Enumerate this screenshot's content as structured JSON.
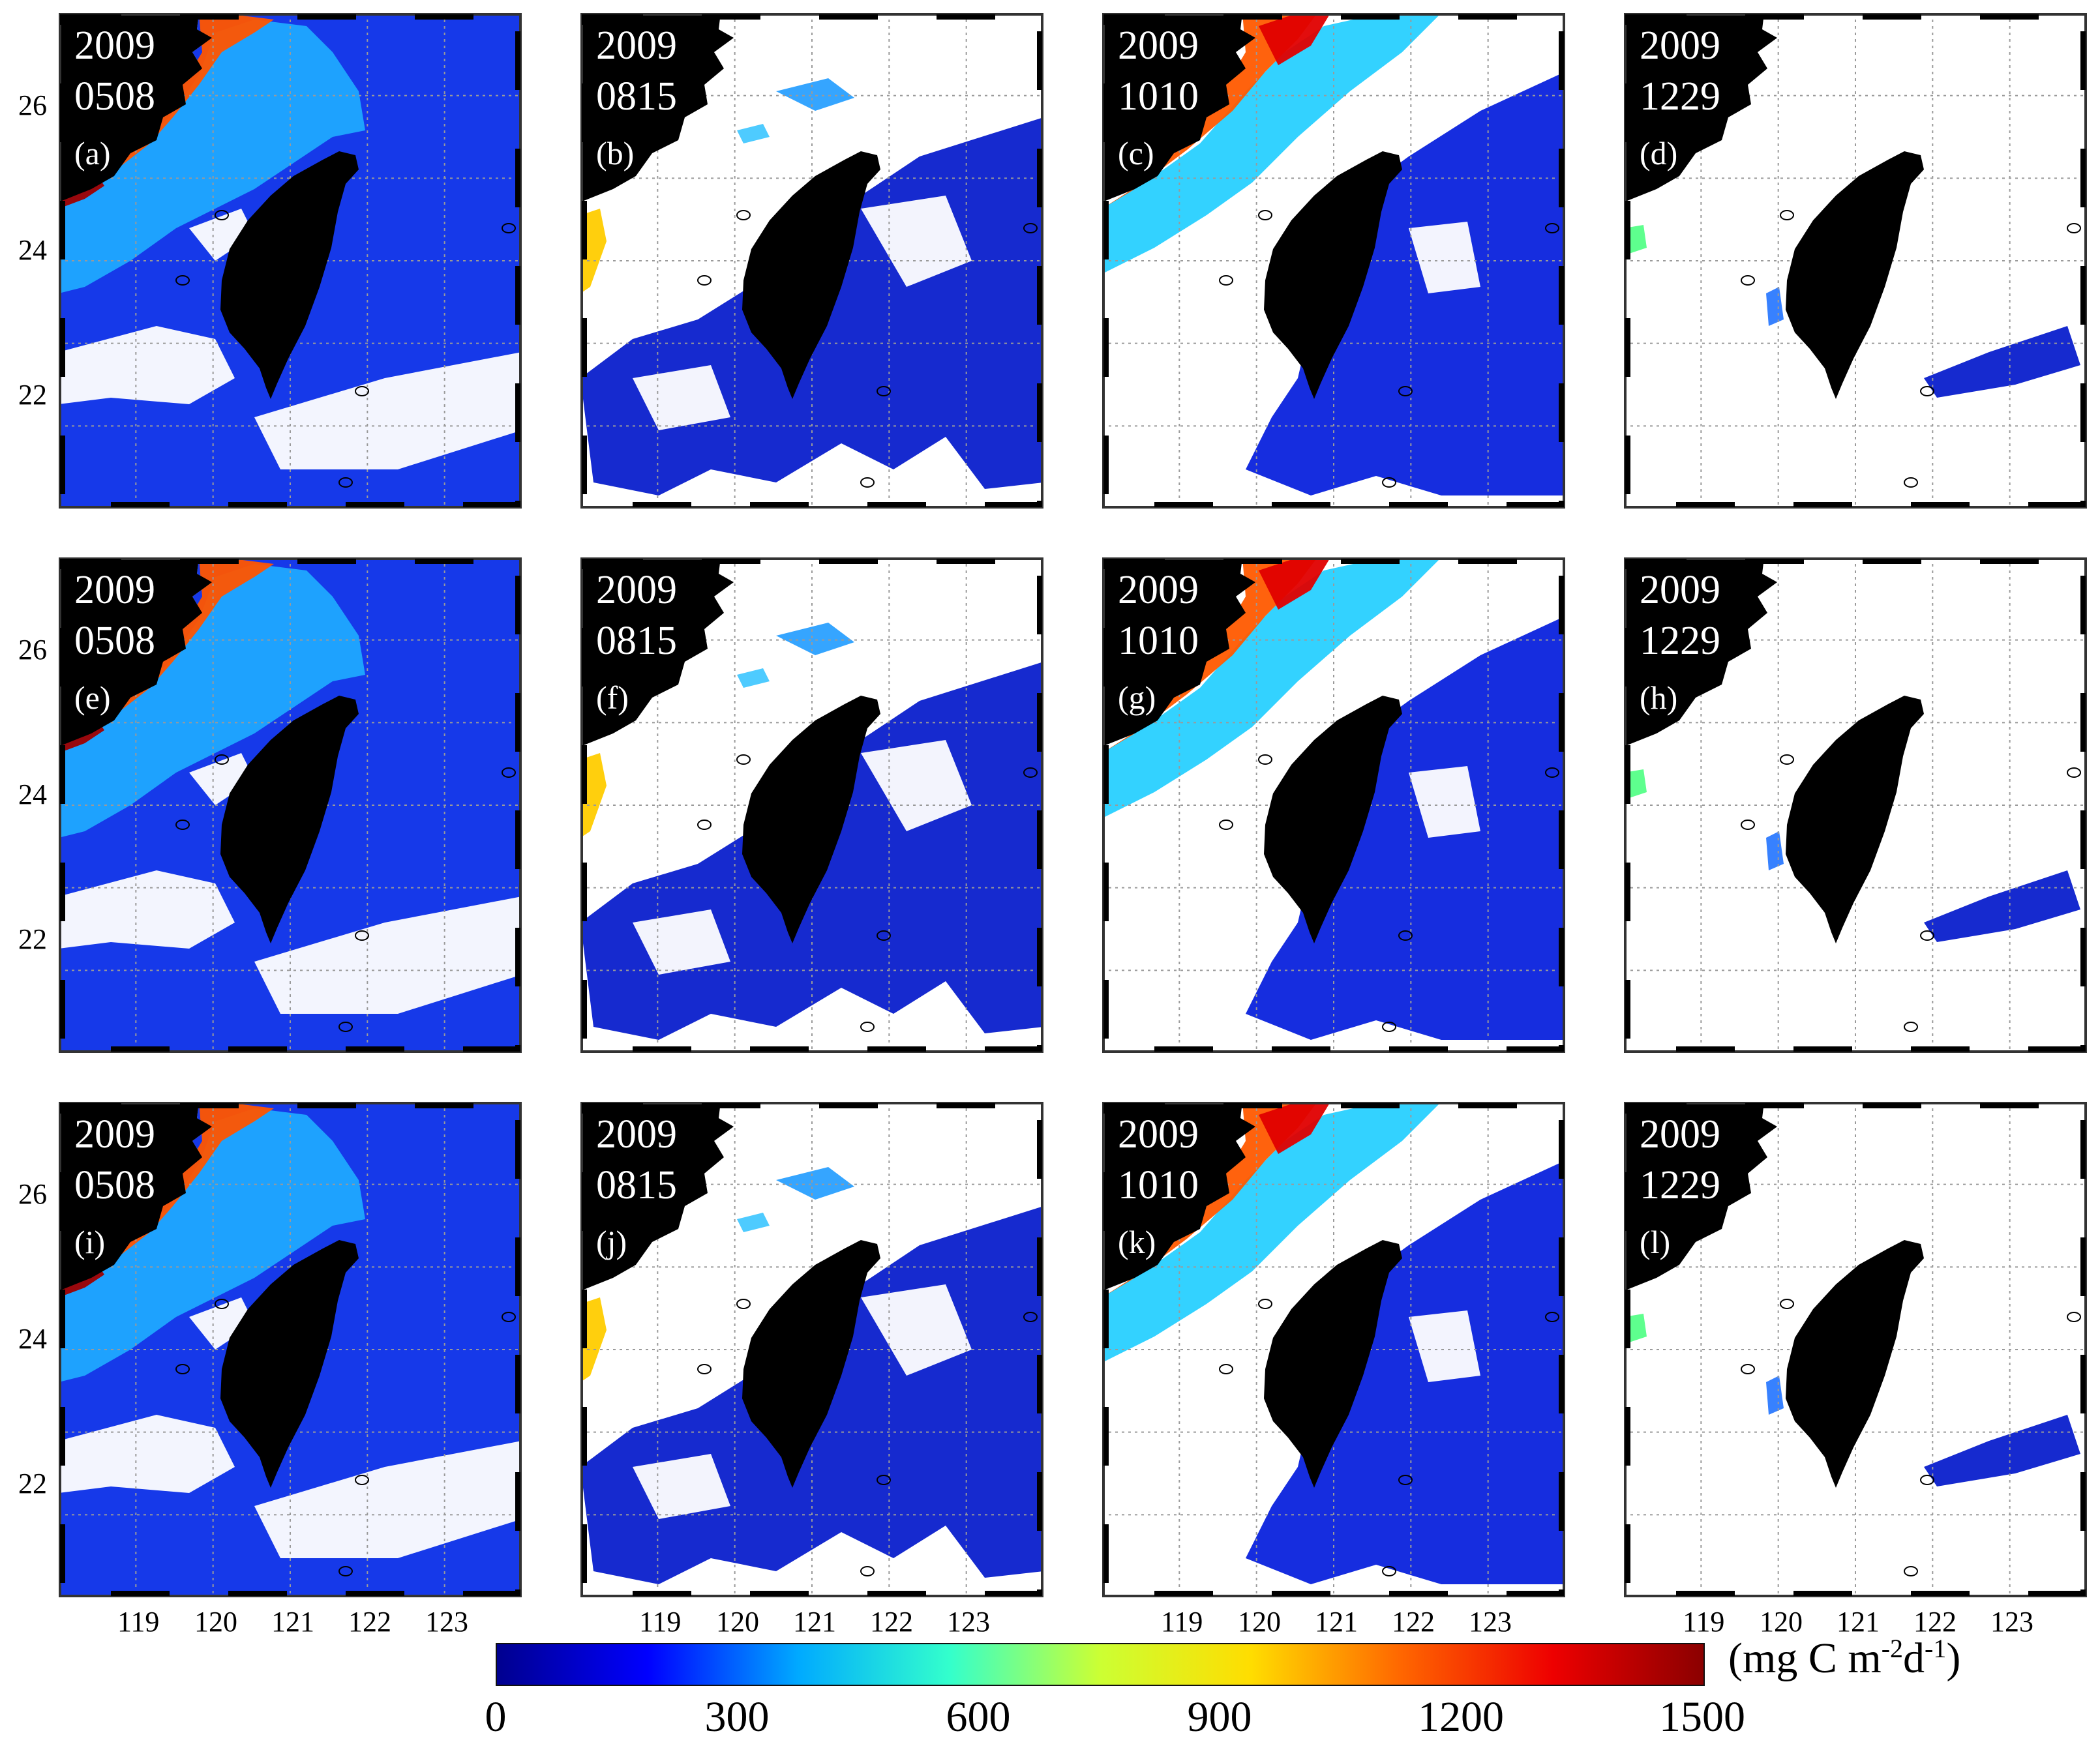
{
  "panels": [
    {
      "id": "a",
      "year": "2009",
      "date": "0508",
      "label": "(a)",
      "row": 0,
      "col": 0
    },
    {
      "id": "b",
      "year": "2009",
      "date": "0815",
      "label": "(b)",
      "row": 0,
      "col": 1
    },
    {
      "id": "c",
      "year": "2009",
      "date": "1010",
      "label": "(c)",
      "row": 0,
      "col": 2
    },
    {
      "id": "d",
      "year": "2009",
      "date": "1229",
      "label": "(d)",
      "row": 0,
      "col": 3
    },
    {
      "id": "e",
      "year": "2009",
      "date": "0508",
      "label": "(e)",
      "row": 1,
      "col": 0
    },
    {
      "id": "f",
      "year": "2009",
      "date": "0815",
      "label": "(f)",
      "row": 1,
      "col": 1
    },
    {
      "id": "g",
      "year": "2009",
      "date": "1010",
      "label": "(g)",
      "row": 1,
      "col": 2
    },
    {
      "id": "h",
      "year": "2009",
      "date": "1229",
      "label": "(h)",
      "row": 1,
      "col": 3
    },
    {
      "id": "i",
      "year": "2009",
      "date": "0508",
      "label": "(i)",
      "row": 2,
      "col": 0
    },
    {
      "id": "j",
      "year": "2009",
      "date": "0815",
      "label": "(j)",
      "row": 2,
      "col": 1
    },
    {
      "id": "k",
      "year": "2009",
      "date": "1010",
      "label": "(k)",
      "row": 2,
      "col": 2
    },
    {
      "id": "l",
      "year": "2009",
      "date": "1229",
      "label": "(l)",
      "row": 2,
      "col": 3
    }
  ],
  "lat_ticks": [
    "26",
    "24",
    "22"
  ],
  "lon_ticks": [
    "119",
    "120",
    "121",
    "122",
    "123"
  ],
  "colorbar": {
    "ticks": [
      "0",
      "300",
      "600",
      "900",
      "1200",
      "1500"
    ],
    "unit_prefix": "(mg  C m",
    "unit_sup1": "-2",
    "unit_mid": "d",
    "unit_sup2": "-1",
    "unit_suffix": ")",
    "colors": [
      "#00008f",
      "#0000ff",
      "#00aaff",
      "#33ffcc",
      "#ccff33",
      "#ffdd00",
      "#ff6600",
      "#ee0000",
      "#8b0000"
    ]
  },
  "colors": {
    "land": "#000000",
    "panel_bg": "#ffffff",
    "grid": "#9a9a9a"
  }
}
